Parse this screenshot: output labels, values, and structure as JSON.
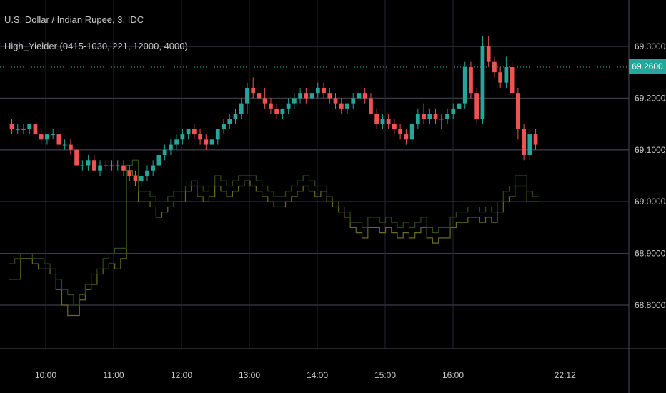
{
  "header": {
    "symbol_title": "U.S. Dollar / Indian Rupee, 3, IDC",
    "indicator_title": "High_Yielder (0415-1030, 221, 12000, 4000)"
  },
  "colors": {
    "background": "#000000",
    "grid": "#3a3a4a",
    "up_candle": "#26a69a",
    "down_candle": "#ef5350",
    "line_fast": "#6b6b1e",
    "line_slow": "#2e4a1c",
    "last_price_line": "#26a69a",
    "axis_text": "#c9c9c9"
  },
  "chart_data": {
    "type": "candlestick",
    "symbol": "U.S. Dollar / Indian Rupee",
    "interval": "3",
    "source": "IDC",
    "ylim": [
      68.72,
      69.36
    ],
    "y_ticks": [
      "69.3000",
      "69.2000",
      "69.1000",
      "69.0000",
      "68.9000",
      "68.8000"
    ],
    "x_ticks": [
      "10:00",
      "11:00",
      "12:00",
      "13:00",
      "14:00",
      "15:00",
      "16:00",
      "22:12"
    ],
    "last_price": "69.2600",
    "grid": true,
    "candles_hour_start": 9.5,
    "candles_minutes_step": 3,
    "candles_ohlc": [
      [
        69.15,
        69.16,
        69.13,
        69.14
      ],
      [
        69.14,
        69.15,
        69.13,
        69.14
      ],
      [
        69.14,
        69.15,
        69.13,
        69.14
      ],
      [
        69.14,
        69.15,
        69.13,
        69.15
      ],
      [
        69.15,
        69.15,
        69.13,
        69.13
      ],
      [
        69.13,
        69.14,
        69.11,
        69.12
      ],
      [
        69.12,
        69.13,
        69.11,
        69.13
      ],
      [
        69.13,
        69.14,
        69.12,
        69.13
      ],
      [
        69.13,
        69.14,
        69.1,
        69.11
      ],
      [
        69.11,
        69.12,
        69.1,
        69.11
      ],
      [
        69.11,
        69.12,
        69.09,
        69.1
      ],
      [
        69.1,
        69.1,
        69.07,
        69.07
      ],
      [
        69.07,
        69.08,
        69.06,
        69.07
      ],
      [
        69.07,
        69.09,
        69.06,
        69.08
      ],
      [
        69.08,
        69.09,
        69.06,
        69.06
      ],
      [
        69.06,
        69.08,
        69.05,
        69.07
      ],
      [
        69.07,
        69.08,
        69.06,
        69.07
      ],
      [
        69.07,
        69.08,
        69.06,
        69.07
      ],
      [
        69.07,
        69.08,
        69.06,
        69.07
      ],
      [
        69.07,
        69.08,
        69.05,
        69.06
      ],
      [
        69.06,
        69.07,
        69.04,
        69.05
      ],
      [
        69.05,
        69.06,
        69.03,
        69.04
      ],
      [
        69.04,
        69.05,
        69.03,
        69.05
      ],
      [
        69.05,
        69.07,
        69.04,
        69.06
      ],
      [
        69.06,
        69.08,
        69.05,
        69.07
      ],
      [
        69.07,
        69.09,
        69.06,
        69.09
      ],
      [
        69.09,
        69.11,
        69.08,
        69.1
      ],
      [
        69.1,
        69.12,
        69.09,
        69.11
      ],
      [
        69.11,
        69.13,
        69.1,
        69.12
      ],
      [
        69.12,
        69.14,
        69.11,
        69.13
      ],
      [
        69.13,
        69.14,
        69.12,
        69.14
      ],
      [
        69.14,
        69.15,
        69.12,
        69.13
      ],
      [
        69.13,
        69.14,
        69.11,
        69.12
      ],
      [
        69.12,
        69.13,
        69.1,
        69.11
      ],
      [
        69.11,
        69.13,
        69.1,
        69.12
      ],
      [
        69.12,
        69.14,
        69.11,
        69.14
      ],
      [
        69.14,
        69.16,
        69.13,
        69.15
      ],
      [
        69.15,
        69.17,
        69.14,
        69.16
      ],
      [
        69.16,
        69.18,
        69.15,
        69.17
      ],
      [
        69.17,
        69.2,
        69.16,
        69.19
      ],
      [
        69.19,
        69.23,
        69.17,
        69.22
      ],
      [
        69.22,
        69.24,
        69.2,
        69.21
      ],
      [
        69.21,
        69.23,
        69.19,
        69.2
      ],
      [
        69.2,
        69.22,
        69.18,
        69.19
      ],
      [
        69.19,
        69.2,
        69.17,
        69.18
      ],
      [
        69.18,
        69.19,
        69.16,
        69.17
      ],
      [
        69.17,
        69.18,
        69.16,
        69.18
      ],
      [
        69.18,
        69.2,
        69.17,
        69.19
      ],
      [
        69.19,
        69.21,
        69.18,
        69.2
      ],
      [
        69.2,
        69.22,
        69.19,
        69.21
      ],
      [
        69.21,
        69.22,
        69.19,
        69.2
      ],
      [
        69.2,
        69.22,
        69.19,
        69.21
      ],
      [
        69.21,
        69.23,
        69.2,
        69.22
      ],
      [
        69.22,
        69.23,
        69.2,
        69.21
      ],
      [
        69.21,
        69.22,
        69.19,
        69.2
      ],
      [
        69.2,
        69.21,
        69.18,
        69.19
      ],
      [
        69.19,
        69.2,
        69.17,
        69.18
      ],
      [
        69.18,
        69.19,
        69.17,
        69.19
      ],
      [
        69.19,
        69.21,
        69.18,
        69.2
      ],
      [
        69.2,
        69.22,
        69.19,
        69.21
      ],
      [
        69.21,
        69.22,
        69.19,
        69.2
      ],
      [
        69.2,
        69.21,
        69.17,
        69.17
      ],
      [
        69.17,
        69.18,
        69.14,
        69.15
      ],
      [
        69.15,
        69.17,
        69.14,
        69.16
      ],
      [
        69.16,
        69.17,
        69.14,
        69.15
      ],
      [
        69.15,
        69.16,
        69.13,
        69.14
      ],
      [
        69.14,
        69.15,
        69.12,
        69.13
      ],
      [
        69.13,
        69.14,
        69.11,
        69.12
      ],
      [
        69.12,
        69.16,
        69.11,
        69.15
      ],
      [
        69.15,
        69.18,
        69.14,
        69.17
      ],
      [
        69.17,
        69.19,
        69.15,
        69.16
      ],
      [
        69.16,
        69.18,
        69.15,
        69.17
      ],
      [
        69.17,
        69.18,
        69.15,
        69.16
      ],
      [
        69.16,
        69.17,
        69.14,
        69.16
      ],
      [
        69.16,
        69.18,
        69.15,
        69.17
      ],
      [
        69.17,
        69.19,
        69.16,
        69.18
      ],
      [
        69.18,
        69.2,
        69.17,
        69.19
      ],
      [
        69.19,
        69.27,
        69.18,
        69.26
      ],
      [
        69.26,
        69.27,
        69.2,
        69.21
      ],
      [
        69.21,
        69.22,
        69.15,
        69.16
      ],
      [
        69.16,
        69.32,
        69.15,
        69.3
      ],
      [
        69.3,
        69.32,
        69.26,
        69.27
      ],
      [
        69.27,
        69.28,
        69.24,
        69.25
      ],
      [
        69.25,
        69.26,
        69.22,
        69.23
      ],
      [
        69.23,
        69.28,
        69.22,
        69.26
      ],
      [
        69.26,
        69.27,
        69.2,
        69.21
      ],
      [
        69.21,
        69.22,
        69.12,
        69.14
      ],
      [
        69.14,
        69.15,
        69.08,
        69.09
      ],
      [
        69.09,
        69.14,
        69.08,
        69.13
      ],
      [
        69.13,
        69.14,
        69.1,
        69.11
      ]
    ],
    "series": [
      {
        "values": [
          68.85,
          68.85,
          68.89,
          68.89,
          68.88,
          68.87,
          68.87,
          68.86,
          68.83,
          68.8,
          68.78,
          68.78,
          68.81,
          68.83,
          68.84,
          68.86,
          68.87,
          68.88,
          68.87,
          68.89,
          69.06,
          69.05,
          69.0,
          69.0,
          68.99,
          68.97,
          68.98,
          68.99,
          69.0,
          69.0,
          69.02,
          69.03,
          69.01,
          69.0,
          69.01,
          69.03,
          69.02,
          69.01,
          69.02,
          69.03,
          69.04,
          69.03,
          69.02,
          69.01,
          69.0,
          68.99,
          68.99,
          69.0,
          69.01,
          69.02,
          69.03,
          69.02,
          69.01,
          69.02,
          69.0,
          68.99,
          68.98,
          68.97,
          68.95,
          68.94,
          68.93,
          68.95,
          68.95,
          68.94,
          68.95,
          68.94,
          68.93,
          68.94,
          68.93,
          68.94,
          68.95,
          68.93,
          68.92,
          68.93,
          68.93,
          68.95,
          68.96,
          68.96,
          68.97,
          68.97,
          68.96,
          68.97,
          68.96,
          68.98,
          69.0,
          69.01,
          69.03,
          69.03,
          69.0,
          69.0
        ]
      },
      {
        "values": [
          68.88,
          68.89,
          68.9,
          68.9,
          68.89,
          68.89,
          68.88,
          68.87,
          68.85,
          68.83,
          68.82,
          68.8,
          68.82,
          68.84,
          68.86,
          68.87,
          68.89,
          68.9,
          68.91,
          68.91,
          69.07,
          69.08,
          69.02,
          69.02,
          69.01,
          69.0,
          69.0,
          69.01,
          69.02,
          69.02,
          69.03,
          69.04,
          69.03,
          69.02,
          69.03,
          69.05,
          69.04,
          69.03,
          69.04,
          69.05,
          69.05,
          69.05,
          69.04,
          69.03,
          69.02,
          69.01,
          69.01,
          69.02,
          69.03,
          69.04,
          69.05,
          69.04,
          69.03,
          69.03,
          69.01,
          69.0,
          68.99,
          68.98,
          68.96,
          68.96,
          68.95,
          68.97,
          68.97,
          68.96,
          68.97,
          68.96,
          68.95,
          68.96,
          68.95,
          68.96,
          68.97,
          68.95,
          68.94,
          68.95,
          68.95,
          68.97,
          68.98,
          68.98,
          68.99,
          68.99,
          68.98,
          68.99,
          68.98,
          69.0,
          69.02,
          69.03,
          69.05,
          69.05,
          69.02,
          69.01
        ]
      }
    ]
  }
}
